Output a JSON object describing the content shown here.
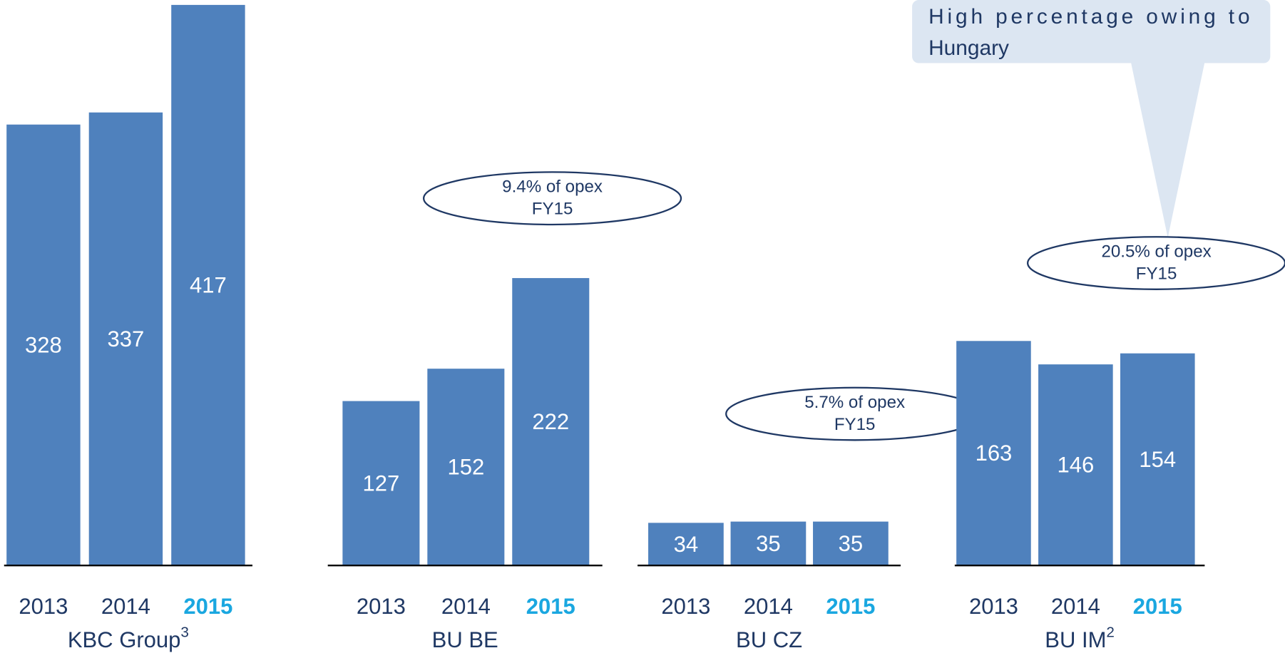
{
  "chart_data": [
    {
      "type": "bar",
      "title": "KBC Group",
      "title_note": "3",
      "categories": [
        "2013",
        "2014",
        "2015"
      ],
      "values": [
        328,
        337,
        417
      ],
      "color": "#4f81bd",
      "category_colors": [
        "#1f3864",
        "#1f3864",
        "#1aa7e0"
      ],
      "ylim": [
        0,
        417
      ]
    },
    {
      "type": "bar",
      "title": "BU BE",
      "categories": [
        "2013",
        "2014",
        "2015"
      ],
      "values": [
        127,
        152,
        222
      ],
      "color": "#4f81bd",
      "category_colors": [
        "#1f3864",
        "#1f3864",
        "#1aa7e0"
      ],
      "ylim": [
        0,
        433
      ],
      "annotation": [
        "9.4% of opex",
        "FY15"
      ]
    },
    {
      "type": "bar",
      "title": "BU CZ",
      "categories": [
        "2013",
        "2014",
        "2015"
      ],
      "values": [
        34,
        35,
        35
      ],
      "color": "#4f81bd",
      "category_colors": [
        "#1f3864",
        "#1f3864",
        "#1aa7e0"
      ],
      "ylim": [
        0,
        447
      ],
      "annotation": [
        "5.7% of opex",
        "FY15"
      ]
    },
    {
      "type": "bar",
      "title": "BU IM",
      "title_note": "2",
      "categories": [
        "2013",
        "2014",
        "2015"
      ],
      "values": [
        163,
        146,
        154
      ],
      "color": "#4f81bd",
      "category_colors": [
        "#1f3864",
        "#1f3864",
        "#1aa7e0"
      ],
      "ylim": [
        0,
        407
      ],
      "annotation": [
        "20.5% of opex",
        "FY15"
      ],
      "callout": [
        "High percentage owing to",
        "Hungary"
      ]
    }
  ]
}
